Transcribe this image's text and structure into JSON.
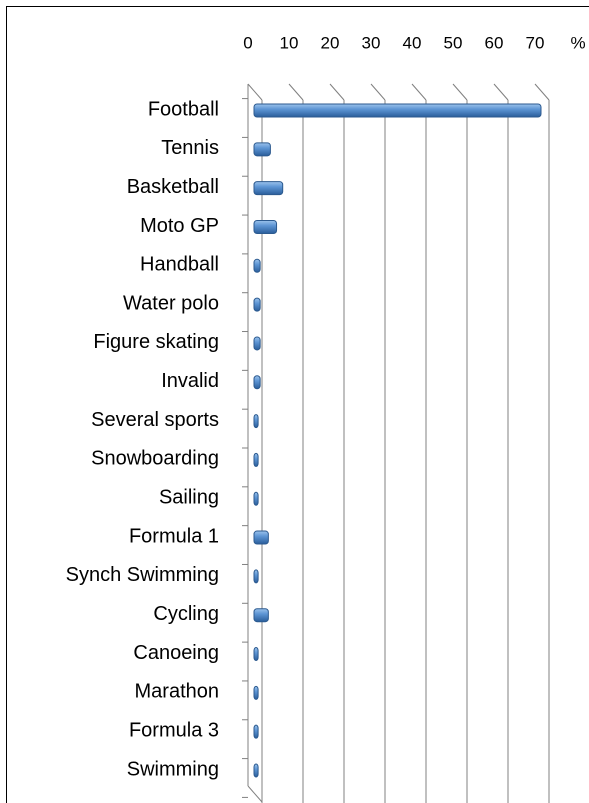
{
  "chart_data": {
    "type": "bar",
    "orientation": "horizontal",
    "xlabel": "%",
    "categories": [
      "Football",
      "Tennis",
      "Basketball",
      "Moto GP",
      "Handball",
      "Water polo",
      "Figure skating",
      "Invalid",
      "Several sports",
      "Snowboarding",
      "Sailing",
      "Formula 1",
      "Synch Swimming",
      "Cycling",
      "Canoeing",
      "Marathon",
      "Formula 3",
      "Swimming"
    ],
    "values": [
      70,
      4,
      7,
      5.5,
      1.5,
      1.5,
      1.5,
      1.5,
      1,
      1,
      1,
      3.5,
      1,
      3.5,
      1,
      1,
      1,
      1
    ],
    "color": "#4f81bd",
    "xlim": [
      0,
      70
    ],
    "xticks": [
      0,
      10,
      20,
      30,
      40,
      50,
      60,
      70
    ],
    "grid": true
  }
}
